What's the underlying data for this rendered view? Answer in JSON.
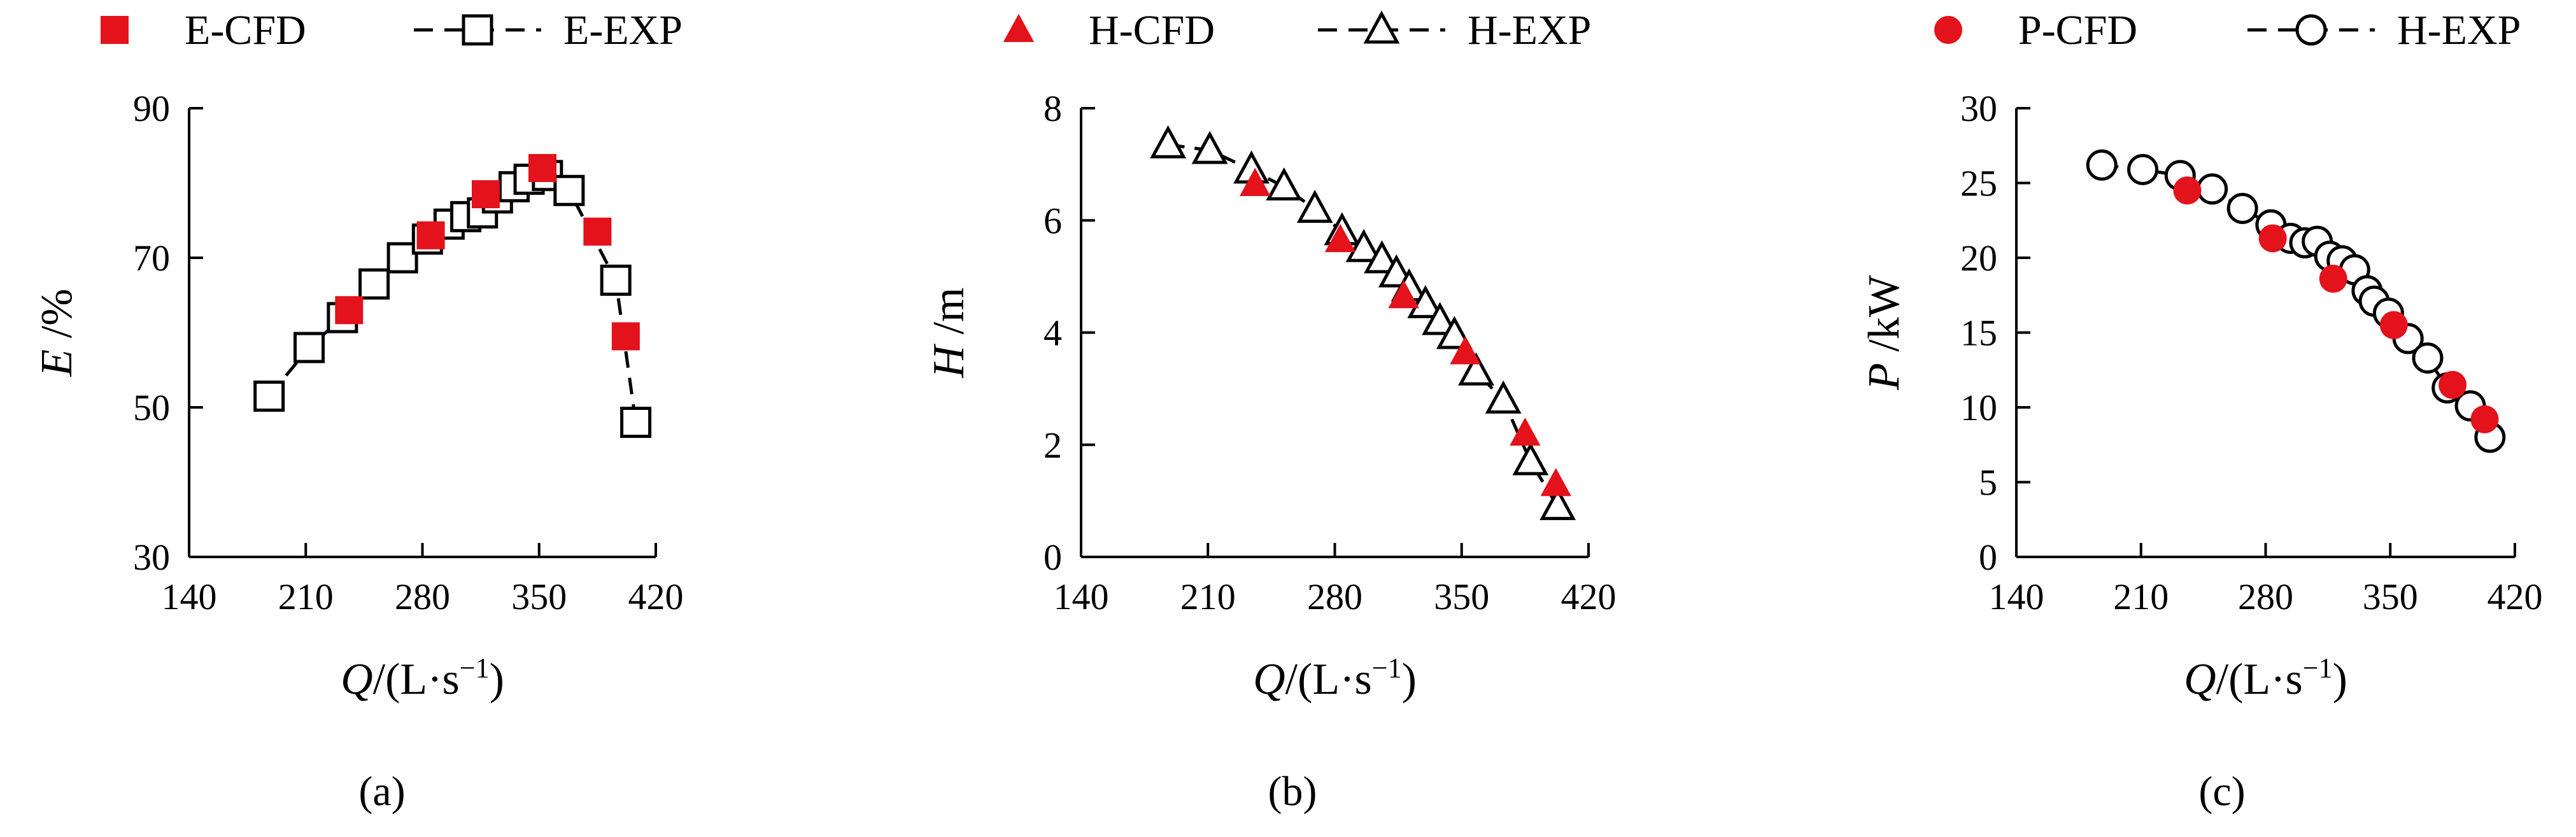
{
  "chart_data": [
    {
      "type": "scatter",
      "panel_label": "a",
      "xlabel": {
        "italic": "Q",
        "rest": "/(L·s",
        "sup": "−1",
        "close": ")"
      },
      "ylabel": {
        "italic": "E",
        "rest": " /%"
      },
      "xlim": [
        140,
        420
      ],
      "ylim": [
        30,
        90
      ],
      "xticks": [
        "140",
        "210",
        "280",
        "350",
        "420"
      ],
      "yticks": [
        "30",
        "50",
        "70",
        "90"
      ],
      "grid": false,
      "legend_position": "top",
      "series": [
        {
          "name": "E-CFD",
          "marker": "square",
          "filled": true,
          "color": "#e3121b",
          "line": false,
          "x": [
            236,
            285,
            318,
            352,
            385,
            402
          ],
          "y": [
            63,
            73,
            78.5,
            82,
            73.5,
            59.5
          ]
        },
        {
          "name": "E-EXP",
          "marker": "square",
          "filled": false,
          "color": "#000000",
          "line": "dashed",
          "x": [
            188,
            212,
            232,
            251,
            268,
            283,
            296,
            306,
            316,
            325,
            335,
            344,
            355,
            368,
            396,
            408
          ],
          "y": [
            51.5,
            58,
            62,
            66.5,
            70,
            72.5,
            74.5,
            75.5,
            76,
            78,
            79.5,
            80.5,
            81,
            79,
            67,
            48
          ]
        }
      ]
    },
    {
      "type": "scatter",
      "panel_label": "b",
      "xlabel": {
        "italic": "Q",
        "rest": "/(L·s",
        "sup": "−1",
        "close": ")"
      },
      "ylabel": {
        "italic": "H",
        "rest": " /m"
      },
      "xlim": [
        140,
        420
      ],
      "ylim": [
        0,
        8
      ],
      "xticks": [
        "140",
        "210",
        "280",
        "350",
        "420"
      ],
      "yticks": [
        "0",
        "2",
        "4",
        "6",
        "8"
      ],
      "grid": false,
      "legend_position": "top",
      "series": [
        {
          "name": "H-CFD",
          "marker": "triangle",
          "filled": true,
          "color": "#e3121b",
          "line": false,
          "x": [
            236,
            283,
            318,
            352,
            385,
            402
          ],
          "y": [
            6.65,
            5.65,
            4.65,
            3.65,
            2.2,
            1.3
          ]
        },
        {
          "name": "H-EXP",
          "marker": "triangle",
          "filled": false,
          "color": "#000000",
          "line": "dashed",
          "x": [
            188,
            211,
            234,
            252,
            269,
            284,
            296,
            306,
            314,
            321,
            330,
            338,
            346,
            358,
            373,
            388,
            403
          ],
          "y": [
            7.35,
            7.25,
            6.9,
            6.6,
            6.2,
            5.8,
            5.5,
            5.3,
            5.05,
            4.8,
            4.5,
            4.2,
            3.95,
            3.3,
            2.8,
            1.7,
            0.9
          ]
        }
      ]
    },
    {
      "type": "scatter",
      "panel_label": "c",
      "xlabel": {
        "italic": "Q",
        "rest": "/(L·s",
        "sup": "−1",
        "close": ")"
      },
      "ylabel": {
        "italic": "P",
        "rest": " /kW"
      },
      "xlim": [
        140,
        420
      ],
      "ylim": [
        0,
        30
      ],
      "xticks": [
        "140",
        "210",
        "280",
        "350",
        "420"
      ],
      "yticks": [
        "0",
        "5",
        "10",
        "15",
        "20",
        "25",
        "30"
      ],
      "grid": false,
      "legend_position": "top",
      "series": [
        {
          "name": "P-CFD",
          "marker": "circle",
          "filled": true,
          "color": "#e3121b",
          "line": false,
          "x": [
            236,
            284,
            318,
            352,
            385,
            403
          ],
          "y": [
            24.5,
            21.3,
            18.6,
            15.5,
            11.5,
            9.2
          ]
        },
        {
          "name": "H-EXP",
          "marker": "circle",
          "filled": false,
          "color": "#000000",
          "line": "dashed",
          "x": [
            188,
            211,
            232,
            250,
            267,
            283,
            294,
            302,
            309,
            316,
            323,
            330,
            337,
            341,
            349,
            360,
            371,
            382,
            395,
            406
          ],
          "y": [
            26.2,
            25.9,
            25.5,
            24.6,
            23.3,
            22.2,
            21.3,
            21.0,
            21.1,
            20.1,
            19.8,
            19.2,
            17.8,
            17.1,
            16.3,
            14.6,
            13.3,
            11.3,
            10.1,
            8.0
          ]
        }
      ]
    }
  ]
}
